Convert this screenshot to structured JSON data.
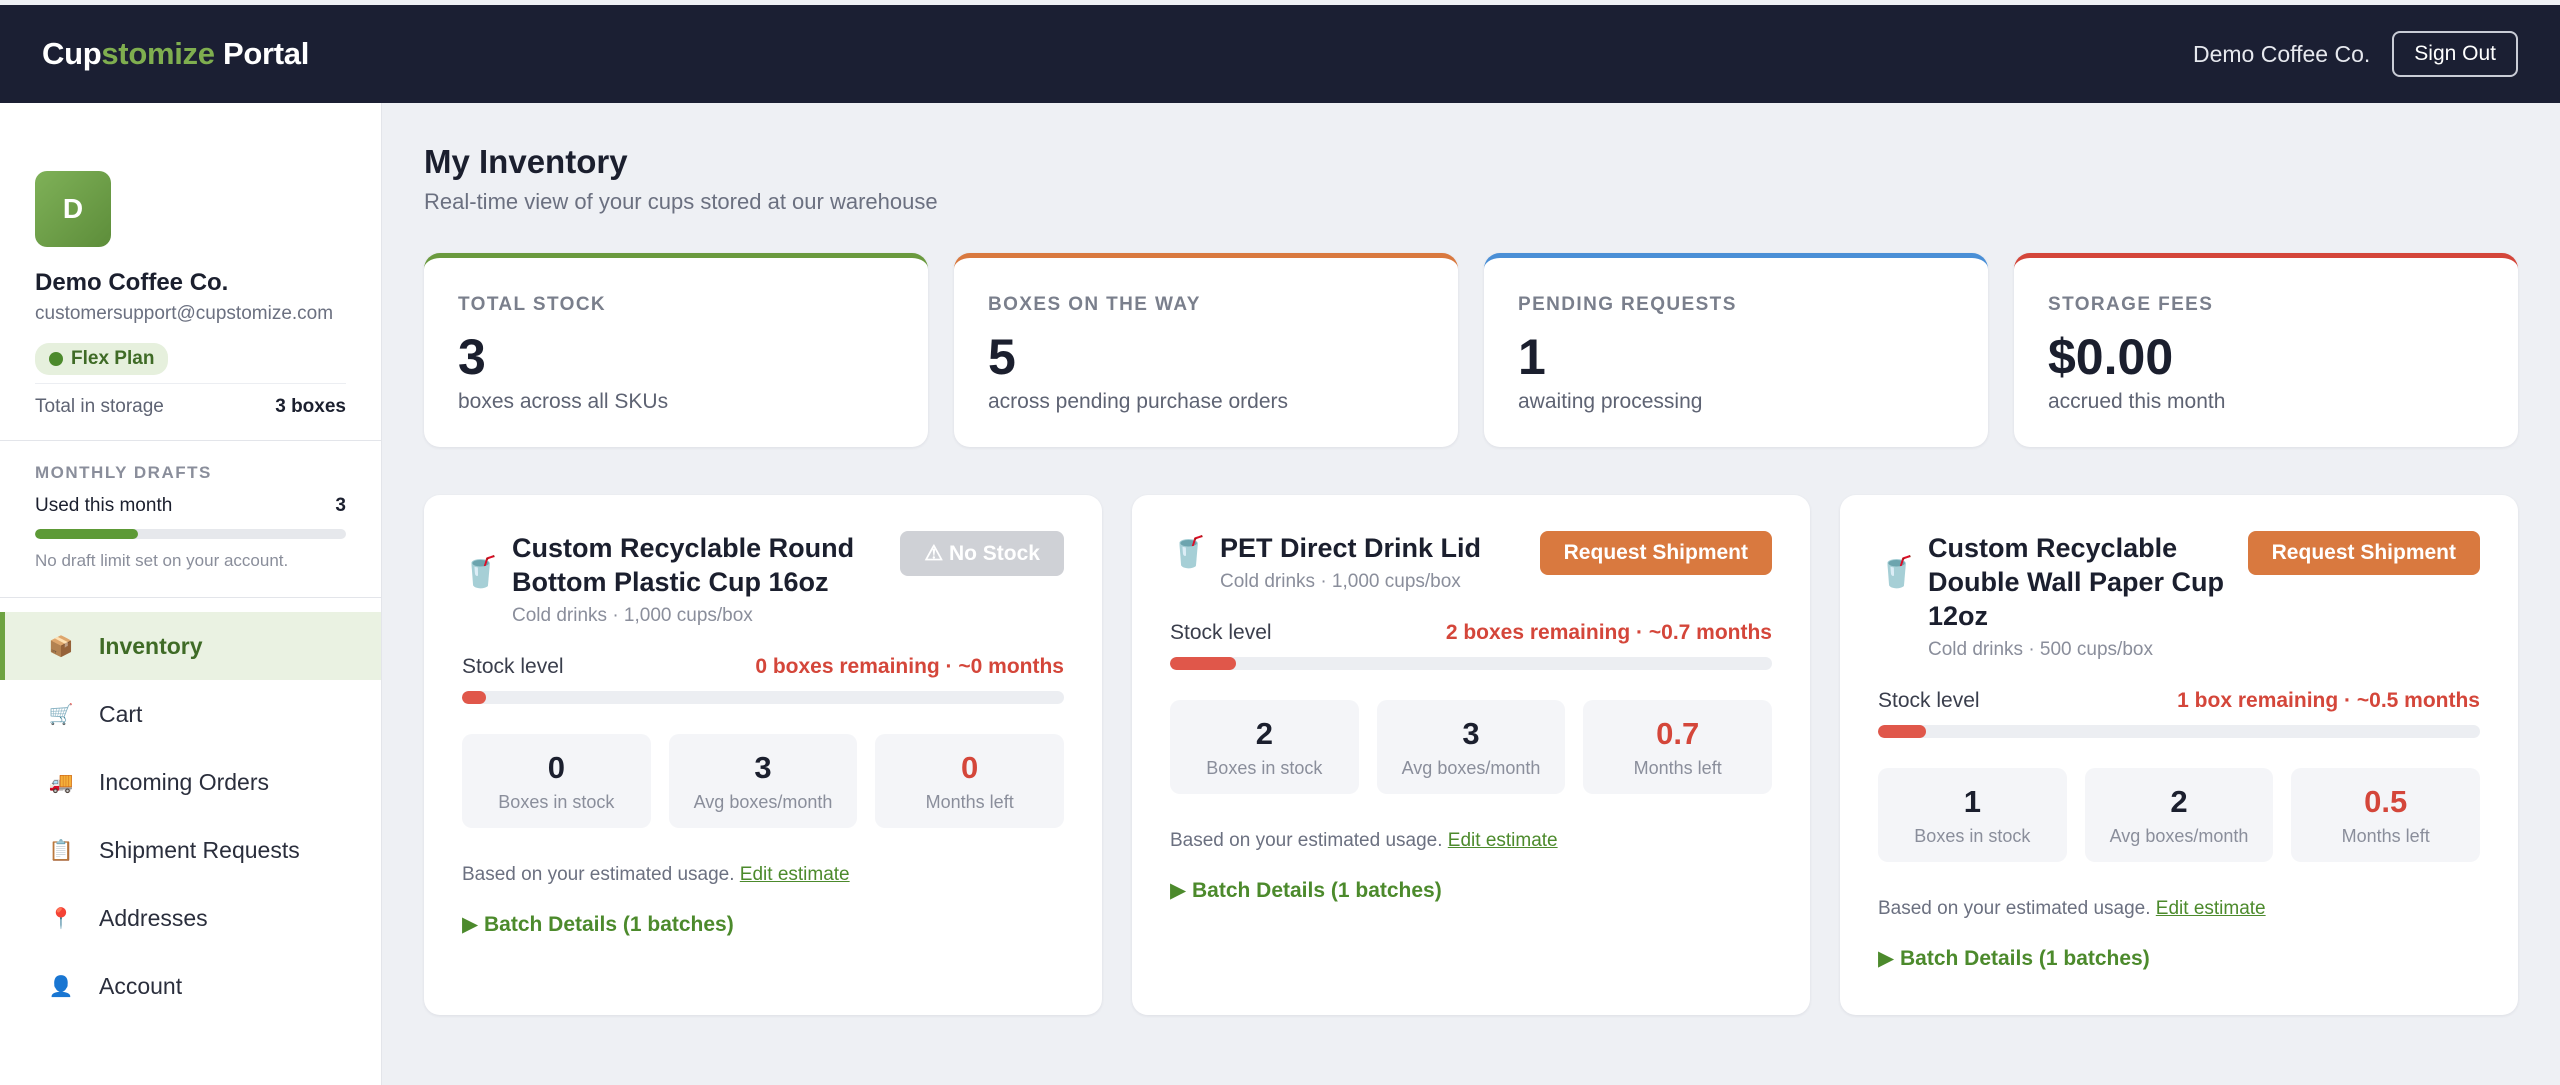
{
  "header": {
    "brand_part1": "Cup",
    "brand_part2": "stomize",
    "brand_part3": " Portal",
    "company": "Demo Coffee Co.",
    "sign_out": "Sign Out"
  },
  "profile": {
    "initial": "D",
    "name": "Demo Coffee Co.",
    "email": "customersupport@cupstomize.com",
    "plan": "Flex Plan",
    "storage_label": "Total in storage",
    "storage_value": "3 boxes"
  },
  "drafts": {
    "title": "MONTHLY DRAFTS",
    "used_label": "Used this month",
    "used_value": "3",
    "progress": 0.33,
    "note": "No draft limit set on your account."
  },
  "nav": [
    {
      "label": "Inventory",
      "icon": "box-icon",
      "glyph": "📦",
      "active": true
    },
    {
      "label": "Cart",
      "icon": "cart-icon",
      "glyph": "🛒",
      "active": false
    },
    {
      "label": "Incoming Orders",
      "icon": "truck-icon",
      "glyph": "🚚",
      "active": false
    },
    {
      "label": "Shipment Requests",
      "icon": "clipboard-icon",
      "glyph": "📋",
      "active": false
    },
    {
      "label": "Addresses",
      "icon": "pin-icon",
      "glyph": "📍",
      "active": false
    },
    {
      "label": "Account",
      "icon": "user-icon",
      "glyph": "👤",
      "active": false
    }
  ],
  "page": {
    "title": "My Inventory",
    "subtitle": "Real-time view of your cups stored at our warehouse"
  },
  "stats": [
    {
      "label": "TOTAL STOCK",
      "value": "3",
      "note": "boxes across all SKUs",
      "color": "#6a9a3e"
    },
    {
      "label": "BOXES ON THE WAY",
      "value": "5",
      "note": "across pending purchase orders",
      "color": "#d9793f"
    },
    {
      "label": "PENDING REQUESTS",
      "value": "1",
      "note": "awaiting processing",
      "color": "#4a8fd6"
    },
    {
      "label": "STORAGE FEES",
      "value": "$0.00",
      "note": "accrued this month",
      "color": "#d4463a"
    }
  ],
  "cards": [
    {
      "title": "Custom Recyclable Round Bottom Plastic Cup 16oz",
      "meta": "Cold drinks · 1,000 cups/box",
      "button": "⚠ No Stock",
      "button_disabled": true,
      "stock_label": "Stock level",
      "remaining": "0 boxes remaining · ~0 months",
      "stock_fraction": 0.04,
      "boxes": "0",
      "boxes_label": "Boxes in stock",
      "avg": "3",
      "avg_label": "Avg boxes/month",
      "months": "0",
      "months_label": "Months left",
      "estimate_text": "Based on your estimated usage.",
      "estimate_link": "Edit estimate",
      "batch": "▶ Batch Details (1 batches)"
    },
    {
      "title": "PET Direct Drink Lid",
      "meta": "Cold drinks · 1,000 cups/box",
      "button": "Request Shipment",
      "button_disabled": false,
      "stock_label": "Stock level",
      "remaining": "2 boxes remaining · ~0.7 months",
      "stock_fraction": 0.11,
      "boxes": "2",
      "boxes_label": "Boxes in stock",
      "avg": "3",
      "avg_label": "Avg boxes/month",
      "months": "0.7",
      "months_label": "Months left",
      "estimate_text": "Based on your estimated usage.",
      "estimate_link": "Edit estimate",
      "batch": "▶ Batch Details (1 batches)"
    },
    {
      "title": "Custom Recyclable Double Wall Paper Cup 12oz",
      "meta": "Cold drinks · 500 cups/box",
      "button": "Request Shipment",
      "button_disabled": false,
      "stock_label": "Stock level",
      "remaining": "1 box remaining · ~0.5 months",
      "stock_fraction": 0.08,
      "boxes": "1",
      "boxes_label": "Boxes in stock",
      "avg": "2",
      "avg_label": "Avg boxes/month",
      "months": "0.5",
      "months_label": "Months left",
      "estimate_text": "Based on your estimated usage.",
      "estimate_link": "Edit estimate",
      "batch": "▶ Batch Details (1 batches)"
    }
  ]
}
